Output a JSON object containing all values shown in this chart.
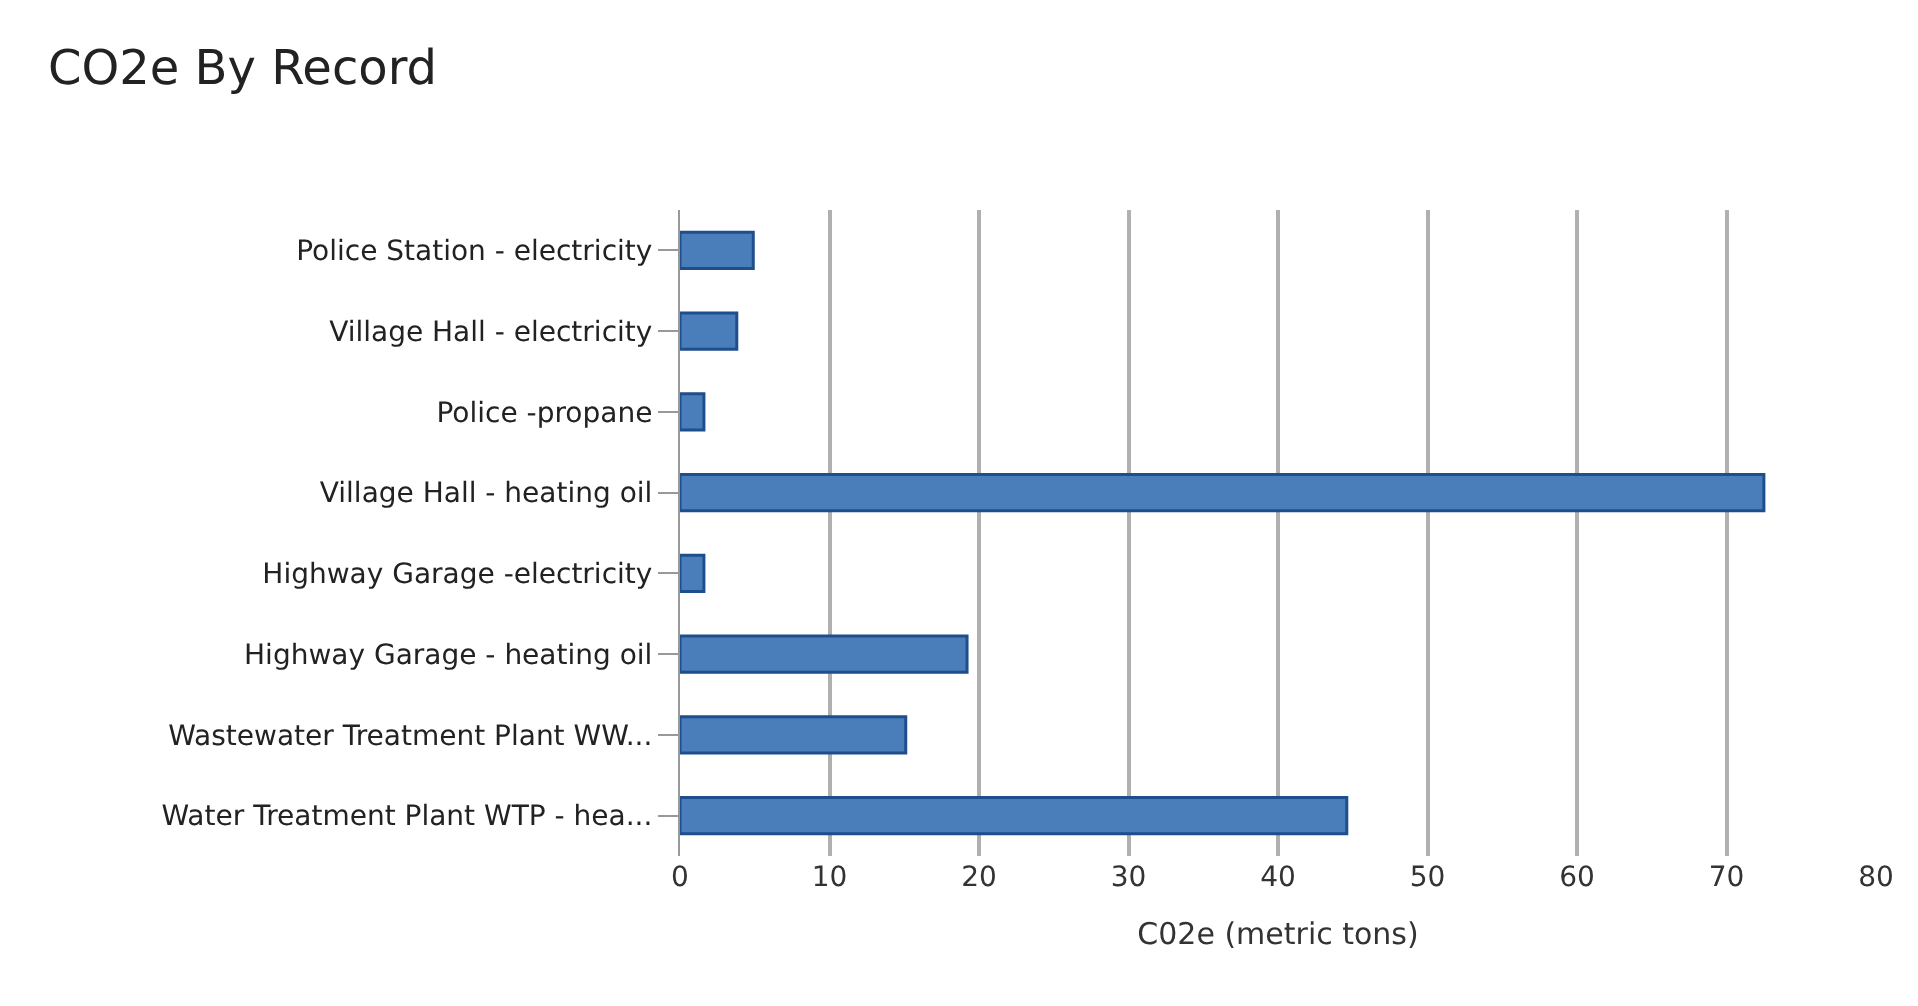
{
  "chart_data": {
    "type": "bar",
    "orientation": "horizontal",
    "title": "CO2e By Record",
    "xlabel": "C02e (metric tons)",
    "categories": [
      "Police Station - electricity",
      "Village Hall - electricity",
      "Police -propane",
      "Village Hall - heating oil",
      "Highway Garage -electricity",
      "Highway Garage - heating oil",
      "Wastewater Treatment Plant WW...",
      "Water Treatment Plant WTP - hea..."
    ],
    "values": [
      4.9,
      3.8,
      1.6,
      72.5,
      1.6,
      19.2,
      15.1,
      44.6
    ],
    "color": "#4a7ebb",
    "xlim": [
      0,
      80
    ],
    "xticks": [
      0,
      10,
      20,
      30,
      40,
      50,
      60,
      70,
      80
    ],
    "grid": "x",
    "legend": false
  }
}
